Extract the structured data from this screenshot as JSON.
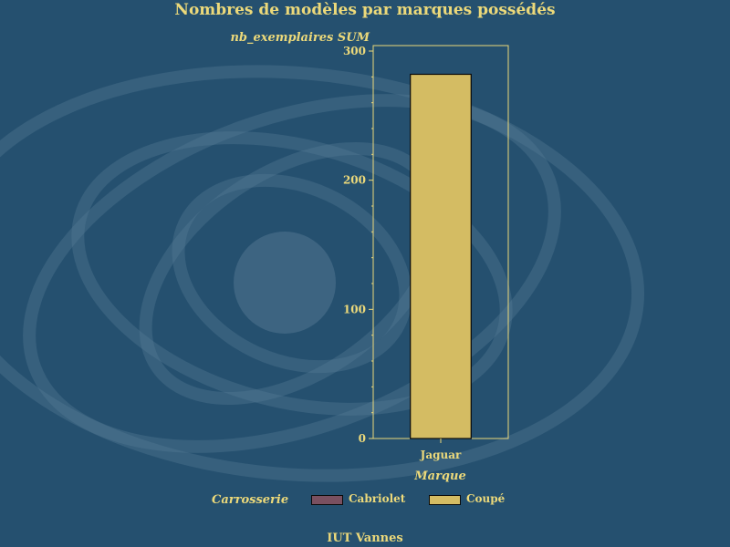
{
  "chart_data": {
    "type": "bar",
    "title": "Nombres de modèles par marques possédés",
    "ylabel": "nb_exemplaires SUM",
    "xlabel": "Marque",
    "categories": [
      "Jaguar"
    ],
    "series": [
      {
        "name": "Cabriolet",
        "color": "#7a5060",
        "values": [
          0
        ]
      },
      {
        "name": "Coupé",
        "color": "#d4bc63",
        "values": [
          282
        ]
      }
    ],
    "ylim": [
      0,
      300
    ],
    "yticks": [
      0,
      100,
      200,
      300
    ],
    "grid": false,
    "legend_title": "Carrosserie",
    "legend_position": "bottom"
  },
  "footer": "IUT Vannes",
  "colors": {
    "background": "#25506f",
    "text": "#ecd97a",
    "axis": "#ecd97a"
  }
}
